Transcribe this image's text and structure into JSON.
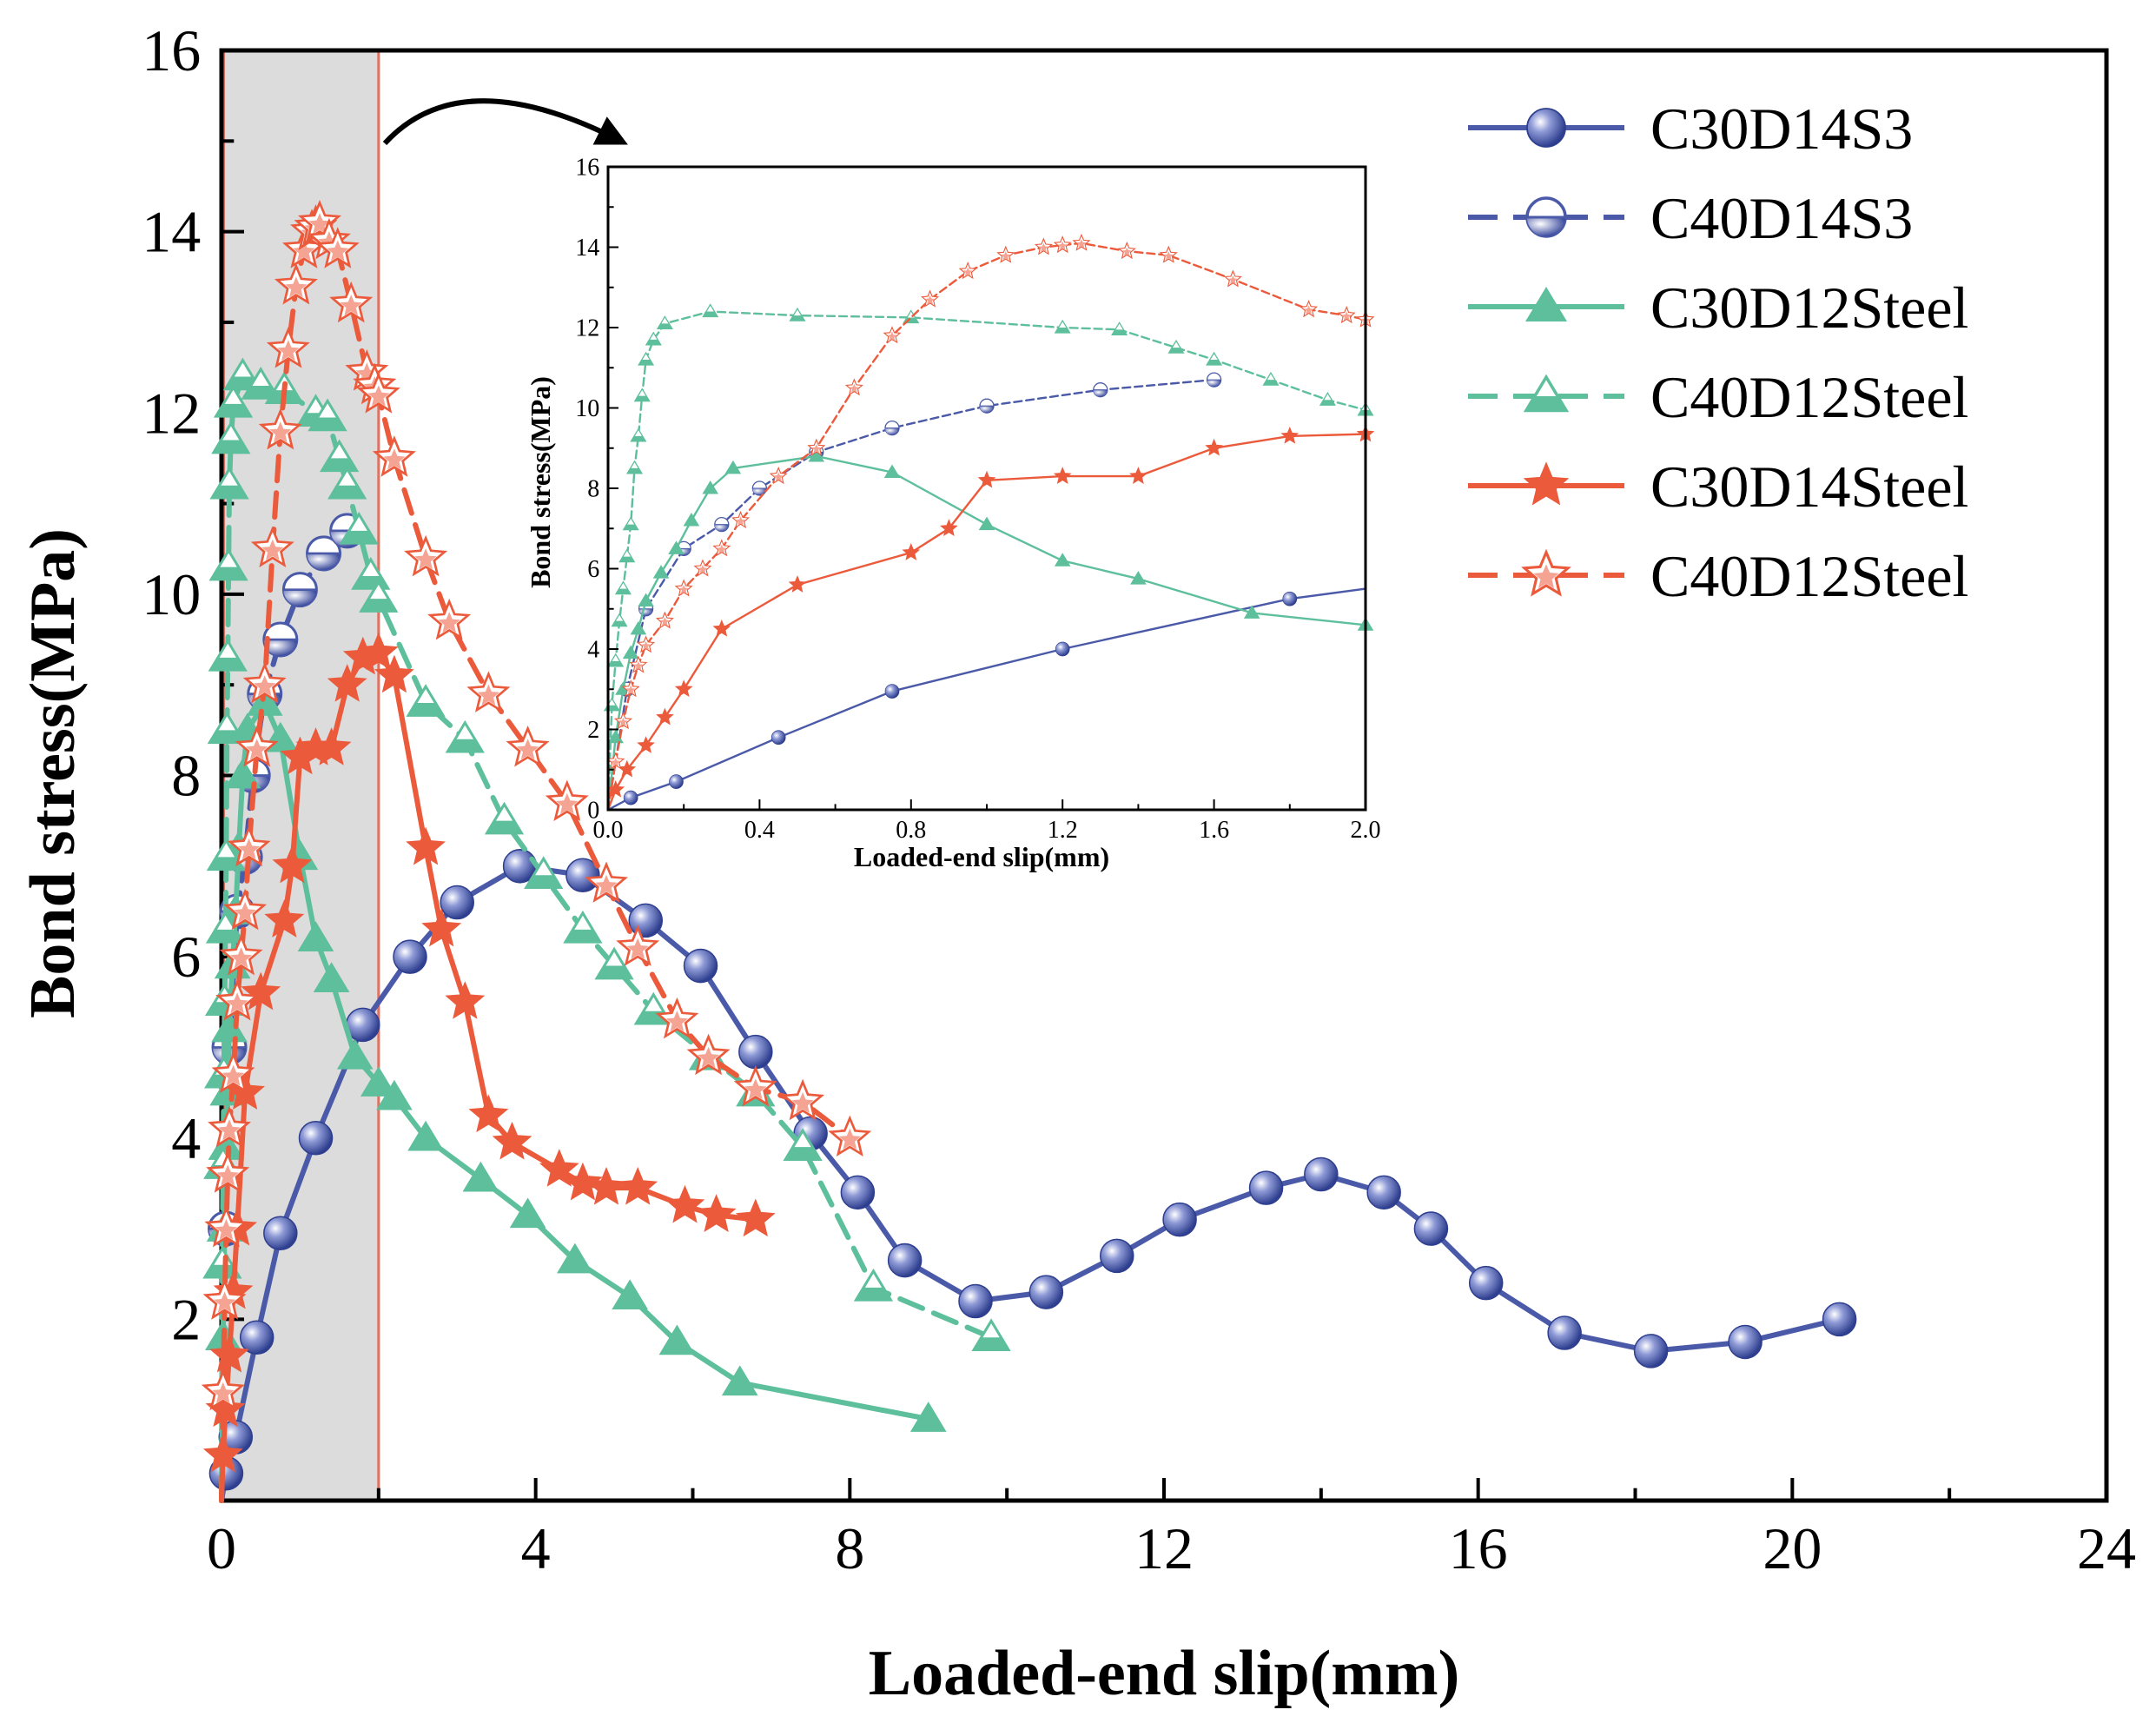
{
  "chart_data": [
    {
      "type": "line",
      "xlabel": "Loaded-end slip(mm)",
      "ylabel": "Bond stress(MPa)",
      "xlim": [
        0,
        24
      ],
      "ylim": [
        0,
        16
      ],
      "xticks": [
        "0",
        "4",
        "8",
        "12",
        "16",
        "20",
        "24"
      ],
      "yticks": [
        "2",
        "4",
        "6",
        "8",
        "10",
        "12",
        "14",
        "16"
      ],
      "legend_position": "top-right",
      "highlight_region": [
        0,
        2
      ],
      "series": [
        {
          "name": "C30D14S3",
          "color": "#4a5aa8",
          "dash": "solid",
          "marker": "sphere",
          "x": [
            0,
            0.06,
            0.18,
            0.45,
            0.75,
            1.2,
            1.8,
            2.4,
            3.0,
            3.8,
            4.6,
            5.4,
            6.1,
            6.8,
            7.5,
            8.1,
            8.7,
            9.6,
            10.5,
            11.4,
            12.2,
            13.3,
            14.0,
            14.8,
            15.4,
            16.1,
            17.1,
            18.2,
            19.4,
            20.6
          ],
          "y": [
            0,
            0.3,
            0.7,
            1.8,
            2.95,
            4.0,
            5.25,
            6.0,
            6.6,
            7.0,
            6.9,
            6.4,
            5.9,
            4.95,
            4.05,
            3.4,
            2.65,
            2.2,
            2.3,
            2.7,
            3.1,
            3.45,
            3.6,
            3.4,
            3.0,
            2.4,
            1.85,
            1.65,
            1.75,
            2.0
          ]
        },
        {
          "name": "C40D14S3",
          "color": "#4a5aa8",
          "dash": "dash",
          "marker": "half-sphere",
          "x": [
            0,
            0.05,
            0.1,
            0.2,
            0.3,
            0.4,
            0.55,
            0.75,
            1.0,
            1.3,
            1.6
          ],
          "y": [
            0,
            3.0,
            5.0,
            6.5,
            7.1,
            8.0,
            8.9,
            9.5,
            10.05,
            10.45,
            10.7
          ]
        },
        {
          "name": "C30D12Steel",
          "color": "#5dbf9c",
          "dash": "solid",
          "marker": "triangle",
          "x": [
            0,
            0.02,
            0.04,
            0.06,
            0.08,
            0.1,
            0.14,
            0.18,
            0.22,
            0.27,
            0.33,
            0.55,
            0.75,
            1.0,
            1.2,
            1.4,
            1.7,
            2.0,
            2.2,
            2.6,
            3.3,
            3.9,
            4.5,
            5.2,
            5.8,
            6.6,
            9.0
          ],
          "y": [
            0,
            1.8,
            3.0,
            3.9,
            4.5,
            5.2,
            5.9,
            6.5,
            7.2,
            8.0,
            8.5,
            8.8,
            8.4,
            7.1,
            6.2,
            5.75,
            4.9,
            4.6,
            4.45,
            4.0,
            3.55,
            3.15,
            2.65,
            2.25,
            1.75,
            1.3,
            0.9
          ]
        },
        {
          "name": "C40D12Steel",
          "color": "#5dbf9c",
          "dash": "dash",
          "marker": "half-triangle",
          "x": [
            0,
            0.01,
            0.02,
            0.03,
            0.04,
            0.05,
            0.06,
            0.07,
            0.08,
            0.09,
            0.1,
            0.12,
            0.15,
            0.27,
            0.5,
            0.8,
            1.2,
            1.35,
            1.5,
            1.6,
            1.75,
            1.9,
            2.0,
            2.6,
            3.1,
            3.6,
            4.1,
            4.6,
            5.0,
            5.5,
            6.2,
            6.8,
            7.4,
            8.3,
            9.8
          ],
          "y": [
            0,
            2.6,
            3.7,
            4.7,
            5.5,
            6.3,
            7.1,
            8.5,
            9.3,
            10.3,
            11.2,
            11.7,
            12.1,
            12.4,
            12.3,
            12.25,
            12.0,
            11.95,
            11.5,
            11.2,
            10.7,
            10.2,
            9.95,
            8.8,
            8.4,
            7.5,
            6.9,
            6.3,
            5.9,
            5.4,
            4.9,
            4.5,
            3.9,
            2.35,
            1.8
          ]
        },
        {
          "name": "C30D14Steel",
          "color": "#ec5a3c",
          "dash": "solid",
          "marker": "star",
          "x": [
            0,
            0.02,
            0.05,
            0.1,
            0.15,
            0.2,
            0.3,
            0.5,
            0.8,
            0.9,
            1.0,
            1.2,
            1.4,
            1.6,
            1.8,
            2.0,
            2.2,
            2.6,
            2.8,
            3.1,
            3.4,
            3.7,
            4.3,
            4.6,
            4.9,
            5.3,
            5.9,
            6.3,
            6.8
          ],
          "y": [
            0,
            0.5,
            1.0,
            1.6,
            2.3,
            3.0,
            4.5,
            5.6,
            6.4,
            7.0,
            8.2,
            8.3,
            8.3,
            9.0,
            9.3,
            9.35,
            9.1,
            7.2,
            6.3,
            5.5,
            4.25,
            3.95,
            3.65,
            3.5,
            3.45,
            3.45,
            3.25,
            3.15,
            3.1
          ]
        },
        {
          "name": "C40D12Steel",
          "color": "#ec5a3c",
          "dash": "dash",
          "marker": "half-star",
          "x": [
            0,
            0.02,
            0.04,
            0.06,
            0.08,
            0.1,
            0.15,
            0.2,
            0.25,
            0.3,
            0.35,
            0.45,
            0.55,
            0.65,
            0.75,
            0.85,
            0.95,
            1.05,
            1.15,
            1.2,
            1.25,
            1.37,
            1.48,
            1.65,
            1.85,
            1.95,
            2.0,
            2.2,
            2.6,
            2.9,
            3.4,
            3.9,
            4.4,
            4.9,
            5.3,
            5.8,
            6.2,
            6.8,
            7.4,
            8.0
          ],
          "y": [
            0,
            1.2,
            2.2,
            3.0,
            3.6,
            4.1,
            4.7,
            5.5,
            6.0,
            6.5,
            7.2,
            8.3,
            9.0,
            10.5,
            11.8,
            12.7,
            13.4,
            13.8,
            14.0,
            14.05,
            14.1,
            13.9,
            13.8,
            13.2,
            12.45,
            12.3,
            12.2,
            11.5,
            10.4,
            9.7,
            8.9,
            8.3,
            7.7,
            6.8,
            6.1,
            5.3,
            4.9,
            4.55,
            4.4,
            4.0
          ]
        }
      ]
    },
    {
      "type": "line",
      "xlabel": "Loaded-end slip(mm)",
      "ylabel": "Bond stress(MPa)",
      "xlim": [
        0,
        2.0
      ],
      "ylim": [
        0,
        16
      ],
      "xticks": [
        "0.0",
        "0.4",
        "0.8",
        "1.2",
        "1.6",
        "2.0"
      ],
      "yticks": [
        "0",
        "2",
        "4",
        "6",
        "8",
        "10",
        "12",
        "14",
        "16"
      ],
      "note": "inset zoom of the 0-2 mm region"
    }
  ]
}
